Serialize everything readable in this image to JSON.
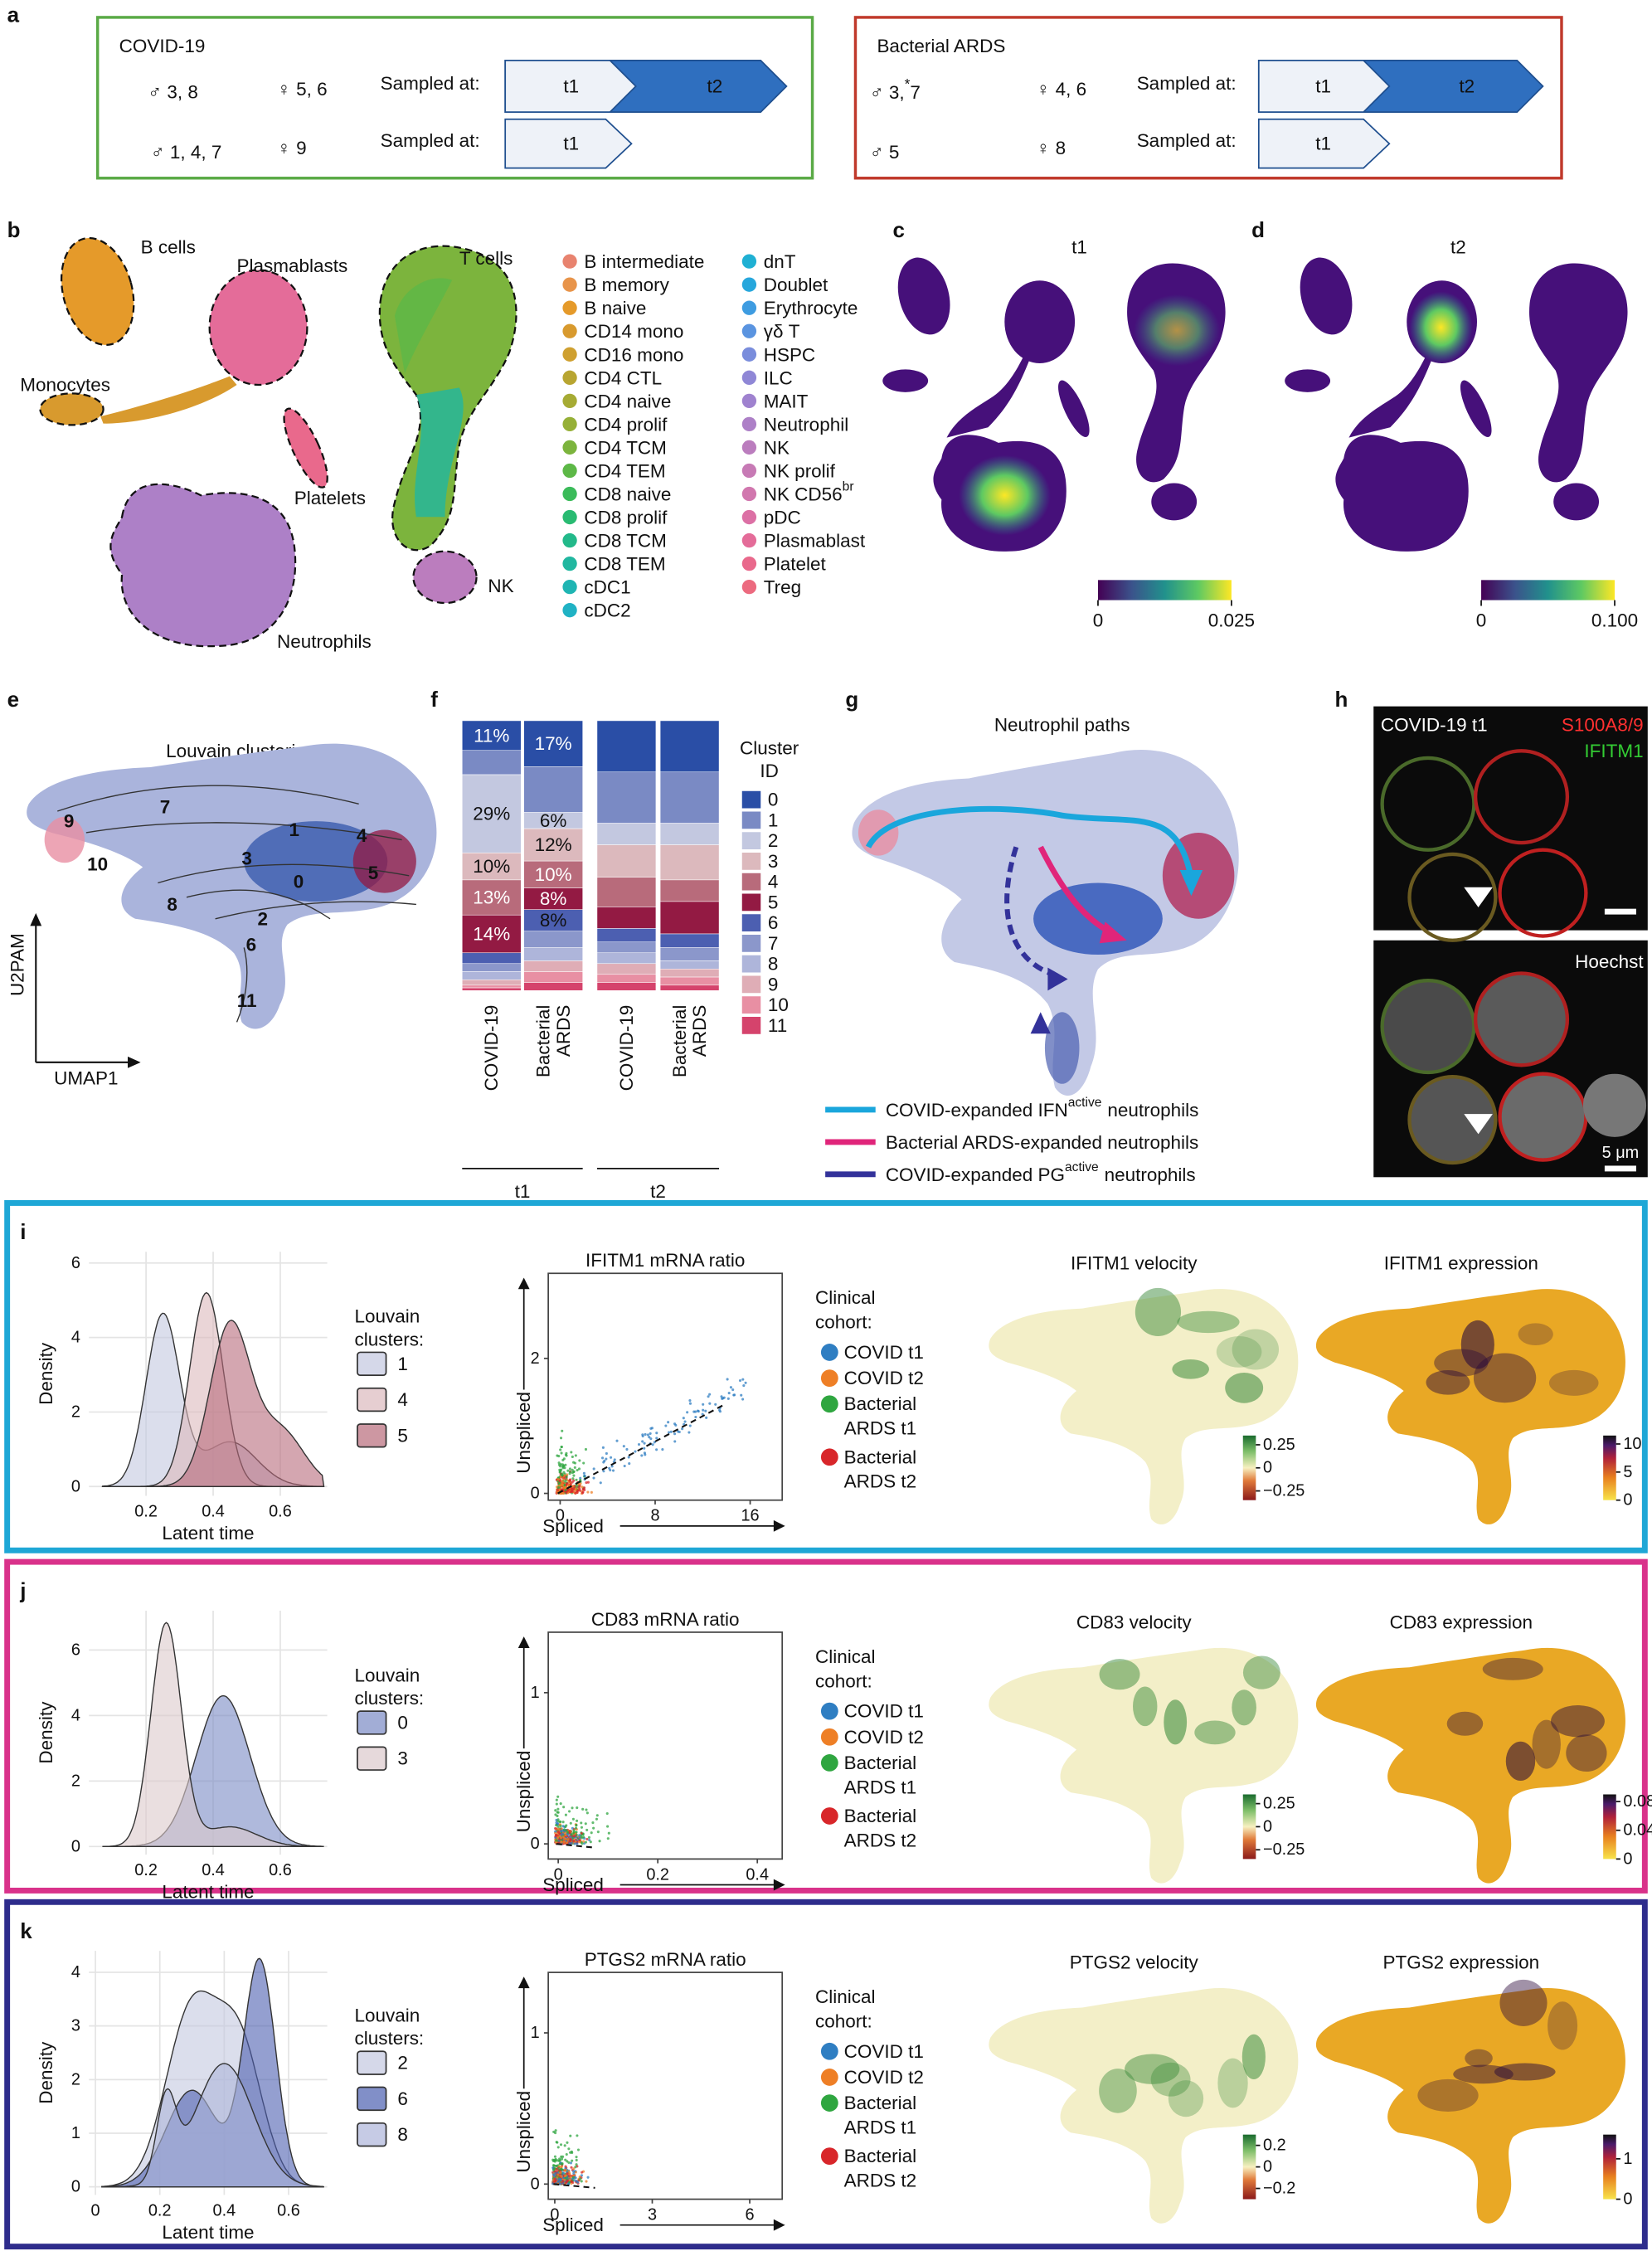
{
  "a": {
    "letter": "a",
    "covid": {
      "title": "COVID-19",
      "male1": "♂ 3, 8",
      "female1": "♀ 5, 6",
      "sampled1": "Sampled at:",
      "arrow1": [
        "t1",
        "t2"
      ],
      "male2": "♂ 1, 4, 7",
      "female2": "♀ 9",
      "sampled2": "Sampled at:",
      "arrow2": [
        "t1"
      ]
    },
    "ards": {
      "title": "Bacterial ARDS",
      "male1": "♂ 3,",
      "male1_sup": "*",
      "male1_post": "7",
      "female1": "♀ 4, 6",
      "sampled1": "Sampled at:",
      "arrow1": [
        "t1",
        "t2"
      ],
      "male2": "♂ 5",
      "female2": "♀ 8",
      "sampled2": "Sampled at:",
      "arrow2": [
        "t1"
      ]
    }
  },
  "b": {
    "letter": "b",
    "labels": [
      "B cells",
      "Plasmablasts",
      "T cells",
      "Monocytes",
      "Platelets",
      "NK",
      "Neutrophils"
    ],
    "legend": [
      {
        "name": "B intermediate",
        "color": "#e8836f"
      },
      {
        "name": "B memory",
        "color": "#e8944a"
      },
      {
        "name": "B naive",
        "color": "#e59a2a"
      },
      {
        "name": "CD14 mono",
        "color": "#d89a2e"
      },
      {
        "name": "CD16 mono",
        "color": "#cfa030"
      },
      {
        "name": "CD4 CTL",
        "color": "#b8a531"
      },
      {
        "name": "CD4 naive",
        "color": "#a6ab34"
      },
      {
        "name": "CD4 prolif",
        "color": "#96b037"
      },
      {
        "name": "CD4 TCM",
        "color": "#7cb43d"
      },
      {
        "name": "CD4 TEM",
        "color": "#5db847"
      },
      {
        "name": "CD8 naive",
        "color": "#3bbb5a"
      },
      {
        "name": "CD8 prolif",
        "color": "#29bb72"
      },
      {
        "name": "CD8 TCM",
        "color": "#23b98a"
      },
      {
        "name": "CD8 TEM",
        "color": "#21b7a0"
      },
      {
        "name": "cDC1",
        "color": "#1fb5b3"
      },
      {
        "name": "cDC2",
        "color": "#20b2c4"
      },
      {
        "name": "dnT",
        "color": "#1fb0d3"
      },
      {
        "name": "Doublet",
        "color": "#27a7dc"
      },
      {
        "name": "Erythrocyte",
        "color": "#3e9ce1"
      },
      {
        "name": "γδ T",
        "color": "#5a94e0"
      },
      {
        "name": "HSPC",
        "color": "#7a8ddc"
      },
      {
        "name": "ILC",
        "color": "#8f87d6"
      },
      {
        "name": "MAIT",
        "color": "#9f82cf"
      },
      {
        "name": "Neutrophil",
        "color": "#ad80c7"
      },
      {
        "name": "NK",
        "color": "#bb7dbe"
      },
      {
        "name": "NK prolif",
        "color": "#c77ab5"
      },
      {
        "name": "NK CD56",
        "sup": "br",
        "color": "#d177ae"
      },
      {
        "name": "pDC",
        "color": "#dc70a5"
      },
      {
        "name": "Plasmablast",
        "color": "#e46c99"
      },
      {
        "name": "Platelet",
        "color": "#e9698c"
      },
      {
        "name": "Treg",
        "color": "#ec6a7f"
      }
    ]
  },
  "c": {
    "letter": "c",
    "title": "t1",
    "cbar_ticks": [
      0,
      0.025
    ],
    "cbar_lim": [
      0,
      0.025
    ]
  },
  "d": {
    "letter": "d",
    "title": "t2",
    "cbar_ticks": [
      0,
      {
        "value": 0.1,
        "label": "0.100"
      }
    ],
    "cbar_lim": [
      0,
      0.1
    ]
  },
  "e": {
    "letter": "e",
    "title": "Louvain clustering",
    "clusters": [
      7,
      9,
      1,
      4,
      10,
      3,
      0,
      5,
      8,
      2,
      6,
      11
    ],
    "xlabel": "UMAP1",
    "ylabel": "U2PAM"
  },
  "f": {
    "letter": "f",
    "legend_title": [
      "Cluster",
      "ID"
    ],
    "cluster_ids": [
      0,
      1,
      2,
      3,
      4,
      5,
      6,
      7,
      8,
      9,
      10,
      11
    ],
    "colors": [
      "#2a4ea6",
      "#7a8ac4",
      "#c3c8e0",
      "#dcb9bd",
      "#b86b7b",
      "#931a43",
      "#4c5fb1",
      "#8b97cb",
      "#aeb5da",
      "#dfadb6",
      "#e88fa3",
      "#d5436c"
    ],
    "bars": [
      {
        "label": [
          "COVID-19"
        ],
        "values": [
          11,
          9,
          29,
          10,
          13,
          14,
          4,
          3,
          3,
          2,
          1,
          1
        ],
        "value_labels": [
          "11%",
          null,
          "29%",
          "10%",
          "13%",
          "14%",
          null,
          null,
          null,
          null,
          null,
          null
        ]
      },
      {
        "label": [
          "Bacterial",
          "ARDS"
        ],
        "values": [
          17,
          17,
          6,
          12,
          10,
          8,
          8,
          6,
          5,
          4,
          4,
          3
        ],
        "value_labels": [
          "17%",
          null,
          "6%",
          "12%",
          "10%",
          "8%",
          "8%",
          null,
          null,
          null,
          null,
          null
        ]
      },
      {
        "label": [
          "COVID-19"
        ],
        "values": [
          19,
          19,
          8,
          12,
          11,
          8,
          5,
          4,
          4,
          4,
          3,
          3
        ]
      },
      {
        "label": [
          "Bacterial",
          "ARDS"
        ],
        "values": [
          19,
          19,
          8,
          13,
          8,
          12,
          5,
          5,
          3,
          3,
          3,
          2
        ]
      }
    ],
    "groups": [
      "t1",
      "t2"
    ]
  },
  "g": {
    "letter": "g",
    "title": "Neutrophil paths",
    "legend": [
      {
        "text": "COVID-expanded IFN",
        "sup": "active",
        "post": "neutrophils",
        "color": "#1aa6dc"
      },
      {
        "text": "Bacterial ARDS-expanded neutrophils",
        "color": "#e0257a"
      },
      {
        "text": "COVID-expanded PG",
        "sup": "active",
        "post": "neutrophils",
        "color": "#33329a"
      }
    ]
  },
  "h": {
    "letter": "h",
    "sample": "COVID-19 t1",
    "stain1": "S100A8/9",
    "stain2": "IFITM1",
    "stain3": "Hoechst",
    "scale": "5 μm"
  },
  "panels": [
    {
      "letter": "i",
      "color": "#1ea7d6",
      "density": {
        "xlim": [
          0.03,
          0.74
        ],
        "ylim": [
          -0.25,
          6.3
        ],
        "yticks": [
          0,
          2,
          4,
          6
        ],
        "xticks": [
          0.2,
          0.4,
          0.6
        ],
        "ylabel": "Density",
        "xlabel": "Latent time"
      },
      "clusters": {
        "title": [
          "Louvain",
          "clusters:"
        ],
        "ids": [
          1,
          4,
          5
        ],
        "colors": [
          "#c3c8e0",
          "#dcb9bd",
          "#b86b7b"
        ]
      },
      "scatter": {
        "title": "IFITM1 mRNA ratio",
        "xlim": [
          -1,
          18.7
        ],
        "ylim": [
          -0.1,
          3.26
        ],
        "yticks": [
          0,
          2
        ],
        "xticks": [
          0,
          8,
          16
        ],
        "ylabel": "Unspliced",
        "xlabel": "Spliced"
      },
      "cohort": {
        "title": [
          "Clinical",
          "cohort:"
        ],
        "items": [
          {
            "lines": [
              "COVID t1"
            ],
            "color": "#2f7ec2"
          },
          {
            "lines": [
              "COVID t2"
            ],
            "color": "#ee7f26"
          },
          {
            "lines": [
              "Bacterial",
              "ARDS t1"
            ],
            "color": "#2fa640"
          },
          {
            "lines": [
              "Bacterial",
              "ARDS t2"
            ],
            "color": "#d8262a"
          }
        ]
      },
      "velocity": {
        "title": "IFITM1 velocity",
        "lim": [
          -0.35,
          0.35
        ],
        "ticks": [
          0.25,
          0,
          {
            "value": -0.25,
            "label": "−0.25"
          }
        ]
      },
      "expression": {
        "title": "IFITM1 expression",
        "lim": [
          0,
          11.5
        ],
        "ticks": [
          10,
          5,
          0
        ]
      }
    },
    {
      "letter": "j",
      "color": "#d9328a",
      "density": {
        "xlim": [
          0.03,
          0.74
        ],
        "ylim": [
          -0.25,
          7.2
        ],
        "yticks": [
          0,
          2,
          4,
          6
        ],
        "xticks": [
          0.2,
          0.4,
          0.6
        ],
        "ylabel": "Density",
        "xlabel": "Latent time"
      },
      "clusters": {
        "title": [
          "Louvain",
          "clusters:"
        ],
        "ids": [
          0,
          3
        ],
        "colors": [
          "#7a8ac4",
          "#dcc9cc"
        ]
      },
      "scatter": {
        "title": "CD83 mRNA ratio",
        "xlim": [
          -0.02,
          0.45
        ],
        "ylim": [
          -0.1,
          1.4
        ],
        "yticks": [
          0,
          1
        ],
        "xticks": [
          0,
          0.2,
          0.4
        ],
        "ylabel": "Unspliced",
        "xlabel": "Spliced"
      },
      "cohort": {
        "title": [
          "Clinical",
          "cohort:"
        ],
        "items": [
          {
            "lines": [
              "COVID t1"
            ],
            "color": "#2f7ec2"
          },
          {
            "lines": [
              "COVID t2"
            ],
            "color": "#ee7f26"
          },
          {
            "lines": [
              "Bacterial",
              "ARDS t1"
            ],
            "color": "#2fa640"
          },
          {
            "lines": [
              "Bacterial",
              "ARDS t2"
            ],
            "color": "#d8262a"
          }
        ]
      },
      "velocity": {
        "title": "CD83 velocity",
        "lim": [
          -0.35,
          0.35
        ],
        "ticks": [
          0.25,
          0,
          {
            "value": -0.25,
            "label": "−0.25"
          }
        ]
      },
      "expression": {
        "title": "CD83 expression",
        "lim": [
          0,
          0.09
        ],
        "ticks": [
          0.08,
          0.04,
          0
        ]
      }
    },
    {
      "letter": "k",
      "color": "#2e2c8c",
      "density": {
        "xlim": [
          -0.02,
          0.72
        ],
        "ylim": [
          -0.15,
          4.4
        ],
        "yticks": [
          0,
          1,
          2,
          3,
          4
        ],
        "xticks": [
          0,
          0.2,
          0.4,
          0.6
        ],
        "ylabel": "Density",
        "xlabel": "Latent time"
      },
      "clusters": {
        "title": [
          "Louvain",
          "clusters:"
        ],
        "ids": [
          2,
          6,
          8
        ],
        "colors": [
          "#c3c8e0",
          "#4c5fb1",
          "#aeb5da"
        ]
      },
      "scatter": {
        "title": "PTGS2 mRNA ratio",
        "xlim": [
          -0.2,
          7
        ],
        "ylim": [
          -0.1,
          1.4
        ],
        "yticks": [
          0,
          1
        ],
        "xticks": [
          0,
          3,
          6
        ],
        "ylabel": "Unspliced",
        "xlabel": "Spliced"
      },
      "cohort": {
        "title": [
          "Clinical",
          "cohort:"
        ],
        "items": [
          {
            "lines": [
              "COVID t1"
            ],
            "color": "#2f7ec2"
          },
          {
            "lines": [
              "COVID t2"
            ],
            "color": "#ee7f26"
          },
          {
            "lines": [
              "Bacterial",
              "ARDS t1"
            ],
            "color": "#2fa640"
          },
          {
            "lines": [
              "Bacterial",
              "ARDS t2"
            ],
            "color": "#d8262a"
          }
        ]
      },
      "velocity": {
        "title": "PTGS2 velocity",
        "lim": [
          -0.3,
          0.3
        ],
        "ticks": [
          0.2,
          0,
          {
            "value": -0.2,
            "label": "−0.2"
          }
        ]
      },
      "expression": {
        "title": "PTGS2 expression",
        "lim": [
          0,
          1.6
        ],
        "ticks": [
          1,
          0
        ]
      }
    }
  ]
}
